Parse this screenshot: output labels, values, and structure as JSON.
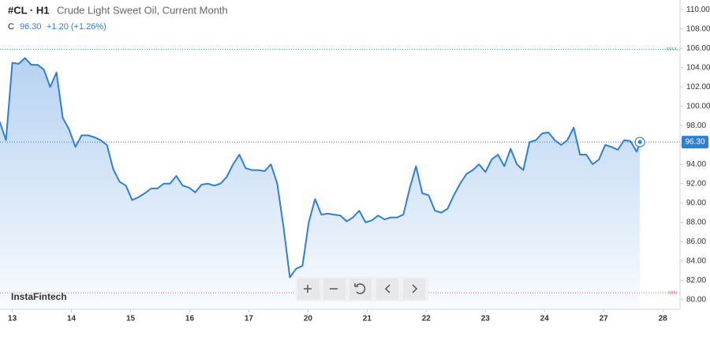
{
  "chart_data": {
    "type": "area",
    "symbol": "#CL · H1",
    "title": "Crude Light Sweet Oil, Current Month",
    "close_prefix": "C",
    "close": "96.30",
    "change": "+1.20 (+1.26%)",
    "watermark": "InstaFintech",
    "color": "#2f7fd8",
    "x": [
      -5.12,
      -2.56,
      0,
      2.56,
      5.12,
      7.68,
      10.24,
      12.8,
      15.36,
      17.92,
      20.48,
      23.04,
      25.6,
      28.16,
      30.72,
      33.28,
      35.84,
      38.4,
      40.96,
      43.52,
      46.08,
      48.64,
      51.2,
      53.76,
      56.32,
      58.88,
      61.44,
      64,
      66.56,
      69.12,
      71.68,
      74.24,
      76.8,
      79.36,
      81.92,
      84.48,
      87.04,
      89.6,
      92.16,
      94.72,
      97.28,
      99.84,
      102.4,
      104.96,
      107.52,
      110.08,
      112.64,
      115.2,
      117.76,
      120.32,
      122.88,
      125.44,
      128,
      130.56,
      133.12,
      135.68,
      138.24,
      140.8,
      143.36,
      145.92,
      148.48,
      151.04,
      153.6,
      156.16,
      158.72,
      161.28,
      163.84,
      166.4,
      168.96,
      171.52,
      174.08,
      176.64,
      179.2,
      181.76,
      184.32,
      186.88,
      189.44,
      192,
      194.56,
      197.12,
      199.68,
      202.24,
      204.8,
      207.36,
      209.92,
      212.48,
      215.04,
      217.6,
      220.16,
      222.72,
      225.28,
      227.84,
      230.4,
      232.96,
      235.52,
      238.08,
      240.64,
      243.2,
      245.76,
      248.32,
      250.88,
      253.44,
      254.72
    ],
    "values": [
      98.4,
      96.5,
      104.5,
      104.4,
      105.0,
      104.3,
      104.3,
      103.8,
      102.0,
      103.5,
      98.8,
      97.6,
      95.8,
      97.0,
      97.0,
      96.8,
      96.5,
      96.0,
      93.5,
      92.2,
      91.8,
      90.3,
      90.6,
      91.0,
      91.5,
      91.5,
      92.0,
      92.0,
      92.8,
      91.8,
      91.6,
      91.1,
      91.9,
      92.0,
      91.8,
      92.0,
      92.7,
      94.0,
      95.0,
      93.6,
      93.4,
      93.4,
      93.3,
      94.0,
      92.0,
      87.5,
      82.3,
      83.2,
      83.5,
      88.0,
      90.4,
      88.8,
      88.9,
      88.8,
      88.7,
      88.1,
      88.5,
      89.2,
      88.0,
      88.2,
      88.7,
      88.3,
      88.5,
      88.5,
      88.8,
      91.5,
      93.8,
      91.0,
      90.8,
      89.2,
      89.0,
      89.4,
      90.8,
      92.0,
      93.0,
      93.4,
      94.0,
      93.2,
      94.5,
      95.0,
      93.8,
      95.6,
      94.0,
      93.4,
      96.3,
      96.5,
      97.2,
      97.3,
      96.5,
      96.0,
      96.5,
      97.8,
      95.0,
      95.0,
      94.0,
      94.5,
      96.0,
      95.8,
      95.5,
      96.5,
      96.4,
      95.3,
      96.3
    ],
    "xlim": [
      -5,
      271
    ],
    "ylim": [
      79,
      111
    ],
    "xticks": [
      {
        "value": 0,
        "label": "13"
      },
      {
        "value": 24,
        "label": "14"
      },
      {
        "value": 48,
        "label": "15"
      },
      {
        "value": 72,
        "label": "16"
      },
      {
        "value": 96,
        "label": "17"
      },
      {
        "value": 120,
        "label": "20"
      },
      {
        "value": 144,
        "label": "21"
      },
      {
        "value": 168,
        "label": "22"
      },
      {
        "value": 192,
        "label": "23"
      },
      {
        "value": 216,
        "label": "24"
      },
      {
        "value": 240,
        "label": "27"
      },
      {
        "value": 264,
        "label": "28"
      }
    ],
    "yticks": [
      {
        "value": 80,
        "label": "80.00"
      },
      {
        "value": 82,
        "label": "82.00"
      },
      {
        "value": 84,
        "label": "84.00"
      },
      {
        "value": 86,
        "label": "86.00"
      },
      {
        "value": 88,
        "label": "88.00"
      },
      {
        "value": 90,
        "label": "90.00"
      },
      {
        "value": 92,
        "label": "92.00"
      },
      {
        "value": 94,
        "label": "94.00"
      },
      {
        "value": 96,
        "label": "96.00"
      },
      {
        "value": 98,
        "label": "98.00"
      },
      {
        "value": 100,
        "label": "100.00"
      },
      {
        "value": 102,
        "label": "102.00"
      },
      {
        "value": 104,
        "label": "104.00"
      },
      {
        "value": 106,
        "label": "106.00"
      },
      {
        "value": 108,
        "label": "108.00"
      },
      {
        "value": 110,
        "label": "110.00"
      }
    ],
    "last_price": {
      "value": 96.3,
      "label": "96.30"
    },
    "max_line": {
      "value": 105.9,
      "label": "MAX"
    },
    "min_line": {
      "value": 80.7,
      "label": "MIN"
    },
    "grid": false
  }
}
